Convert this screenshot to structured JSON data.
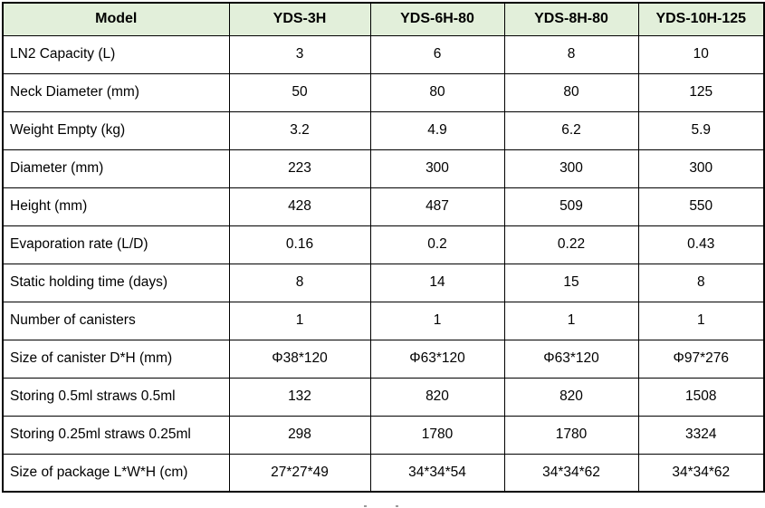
{
  "colors": {
    "header_bg": "#e2efda",
    "border": "#000000",
    "text": "#000000"
  },
  "table": {
    "header": [
      "Model",
      "YDS-3H",
      "YDS-6H-80",
      "YDS-8H-80",
      "YDS-10H-125"
    ],
    "rows": [
      [
        "LN2 Capacity (L)",
        "3",
        "6",
        "8",
        "10"
      ],
      [
        "Neck Diameter (mm)",
        "50",
        "80",
        "80",
        "125"
      ],
      [
        "Weight Empty (kg)",
        "3.2",
        "4.9",
        "6.2",
        "5.9"
      ],
      [
        "Diameter (mm)",
        "223",
        "300",
        "300",
        "300"
      ],
      [
        "Height (mm)",
        "428",
        "487",
        "509",
        "550"
      ],
      [
        "Evaporation rate (L/D)",
        "0.16",
        "0.2",
        "0.22",
        "0.43"
      ],
      [
        "Static holding time (days)",
        "8",
        "14",
        "15",
        "8"
      ],
      [
        "Number of canisters",
        "1",
        "1",
        "1",
        "1"
      ],
      [
        "Size of canister D*H (mm)",
        "Φ38*120",
        "Φ63*120",
        "Φ63*120",
        "Φ97*276"
      ],
      [
        "Storing 0.5ml straws 0.5ml",
        "132",
        "820",
        "820",
        "1508"
      ],
      [
        "Storing 0.25ml straws 0.25ml",
        "298",
        "1780",
        "1780",
        "3324"
      ],
      [
        "Size of package L*W*H (cm)",
        "27*27*49",
        "34*34*54",
        "34*34*62",
        "34*34*62"
      ]
    ]
  }
}
